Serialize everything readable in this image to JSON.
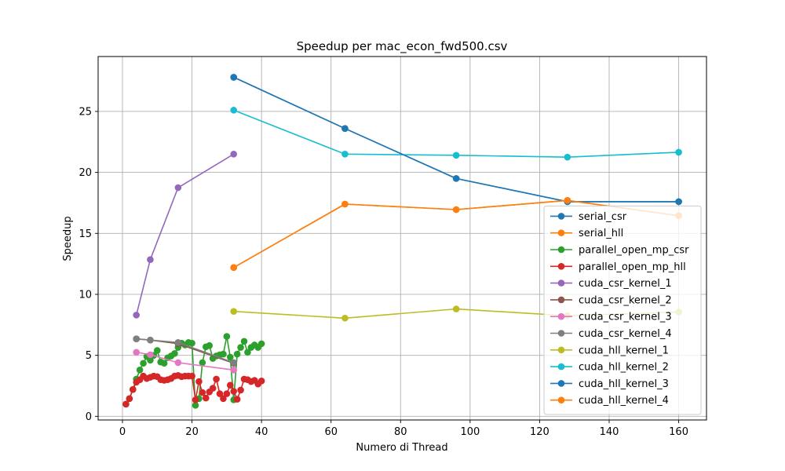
{
  "chart_data": {
    "type": "line",
    "title": "Speedup per mac_econ_fwd500.csv",
    "xlabel": "Numero di Thread",
    "ylabel": "Speedup",
    "xlim": [
      -7,
      168
    ],
    "ylim": [
      -0.3,
      29.5
    ],
    "xticks": [
      0,
      20,
      40,
      60,
      80,
      100,
      120,
      140,
      160
    ],
    "yticks": [
      0,
      5,
      10,
      15,
      20,
      25
    ],
    "grid": true,
    "legend_position": "lower right",
    "series": [
      {
        "name": "serial_csr",
        "color": "#1f77b4",
        "points": [
          [
            32,
            27.8
          ],
          [
            64,
            23.6
          ],
          [
            96,
            19.5
          ],
          [
            128,
            17.6
          ],
          [
            160,
            17.6
          ]
        ]
      },
      {
        "name": "serial_hll",
        "color": "#ff7f0e",
        "points": [
          [
            32,
            12.2
          ],
          [
            64,
            17.4
          ],
          [
            96,
            16.95
          ],
          [
            128,
            17.7
          ],
          [
            160,
            16.45
          ]
        ]
      },
      {
        "name": "parallel_open_mp_csr",
        "color": "#2ca02c",
        "points": [
          [
            1,
            1.0
          ],
          [
            2,
            1.45
          ],
          [
            3,
            2.2
          ],
          [
            4,
            3.05
          ],
          [
            5,
            3.8
          ],
          [
            6,
            4.35
          ],
          [
            7,
            4.9
          ],
          [
            8,
            4.6
          ],
          [
            9,
            5.0
          ],
          [
            10,
            5.4
          ],
          [
            11,
            4.45
          ],
          [
            12,
            4.35
          ],
          [
            13,
            4.8
          ],
          [
            14,
            4.95
          ],
          [
            15,
            5.15
          ],
          [
            16,
            5.65
          ],
          [
            17,
            6.0
          ],
          [
            18,
            5.85
          ],
          [
            19,
            6.05
          ],
          [
            20,
            6.0
          ],
          [
            21,
            0.9
          ],
          [
            22,
            1.45
          ],
          [
            23,
            4.4
          ],
          [
            24,
            5.7
          ],
          [
            25,
            5.8
          ],
          [
            26,
            4.75
          ],
          [
            27,
            4.95
          ],
          [
            28,
            5.05
          ],
          [
            29,
            5.1
          ],
          [
            30,
            6.55
          ],
          [
            31,
            4.85
          ],
          [
            32,
            1.35
          ],
          [
            33,
            5.1
          ],
          [
            34,
            5.65
          ],
          [
            35,
            6.15
          ],
          [
            36,
            5.25
          ],
          [
            37,
            5.65
          ],
          [
            38,
            5.85
          ],
          [
            39,
            5.65
          ],
          [
            40,
            5.95
          ]
        ]
      },
      {
        "name": "parallel_open_mp_hll",
        "color": "#d62728",
        "points": [
          [
            1,
            1.0
          ],
          [
            2,
            1.45
          ],
          [
            3,
            2.2
          ],
          [
            4,
            2.8
          ],
          [
            5,
            3.0
          ],
          [
            6,
            3.3
          ],
          [
            7,
            3.1
          ],
          [
            8,
            3.2
          ],
          [
            9,
            3.3
          ],
          [
            10,
            3.25
          ],
          [
            11,
            3.0
          ],
          [
            12,
            2.95
          ],
          [
            13,
            3.0
          ],
          [
            14,
            3.1
          ],
          [
            15,
            3.3
          ],
          [
            16,
            3.35
          ],
          [
            17,
            3.25
          ],
          [
            18,
            3.3
          ],
          [
            19,
            3.3
          ],
          [
            20,
            3.3
          ],
          [
            21,
            1.35
          ],
          [
            22,
            2.85
          ],
          [
            23,
            1.95
          ],
          [
            24,
            1.5
          ],
          [
            25,
            2.0
          ],
          [
            26,
            2.3
          ],
          [
            27,
            3.05
          ],
          [
            28,
            1.85
          ],
          [
            29,
            1.45
          ],
          [
            30,
            1.85
          ],
          [
            31,
            2.55
          ],
          [
            32,
            2.05
          ],
          [
            33,
            1.4
          ],
          [
            34,
            2.15
          ],
          [
            35,
            3.05
          ],
          [
            36,
            3.0
          ],
          [
            37,
            2.85
          ],
          [
            38,
            2.95
          ],
          [
            39,
            2.65
          ],
          [
            40,
            2.9
          ]
        ]
      },
      {
        "name": "cuda_csr_kernel_1",
        "color": "#9467bd",
        "points": [
          [
            4,
            8.3
          ],
          [
            8,
            12.85
          ],
          [
            16,
            18.75
          ],
          [
            32,
            21.5
          ]
        ]
      },
      {
        "name": "cuda_csr_kernel_2",
        "color": "#8c564b",
        "points": [
          [
            4,
            6.35
          ],
          [
            8,
            6.25
          ],
          [
            16,
            5.95
          ],
          [
            32,
            4.35
          ]
        ]
      },
      {
        "name": "cuda_csr_kernel_3",
        "color": "#e377c2",
        "points": [
          [
            4,
            5.25
          ],
          [
            8,
            5.05
          ],
          [
            16,
            4.4
          ],
          [
            32,
            3.8
          ]
        ]
      },
      {
        "name": "cuda_csr_kernel_4",
        "color": "#7f7f7f",
        "points": [
          [
            4,
            6.35
          ],
          [
            8,
            6.25
          ],
          [
            16,
            6.05
          ],
          [
            32,
            4.4
          ]
        ]
      },
      {
        "name": "cuda_hll_kernel_1",
        "color": "#bcbd22",
        "points": [
          [
            32,
            8.6
          ],
          [
            64,
            8.05
          ],
          [
            96,
            8.8
          ],
          [
            128,
            8.25
          ],
          [
            160,
            8.55
          ]
        ]
      },
      {
        "name": "cuda_hll_kernel_2",
        "color": "#17becf",
        "points": [
          [
            32,
            25.1
          ],
          [
            64,
            21.5
          ],
          [
            96,
            21.4
          ],
          [
            128,
            21.25
          ],
          [
            160,
            21.65
          ]
        ]
      },
      {
        "name": "cuda_hll_kernel_3",
        "color": "#1f77b4",
        "points": [
          [
            32,
            27.8
          ],
          [
            64,
            23.6
          ],
          [
            96,
            19.5
          ],
          [
            128,
            17.6
          ],
          [
            160,
            17.6
          ]
        ]
      },
      {
        "name": "cuda_hll_kernel_4",
        "color": "#ff7f0e",
        "points": [
          [
            32,
            12.2
          ],
          [
            64,
            17.4
          ],
          [
            96,
            16.95
          ],
          [
            128,
            17.7
          ],
          [
            160,
            16.45
          ]
        ]
      }
    ]
  }
}
